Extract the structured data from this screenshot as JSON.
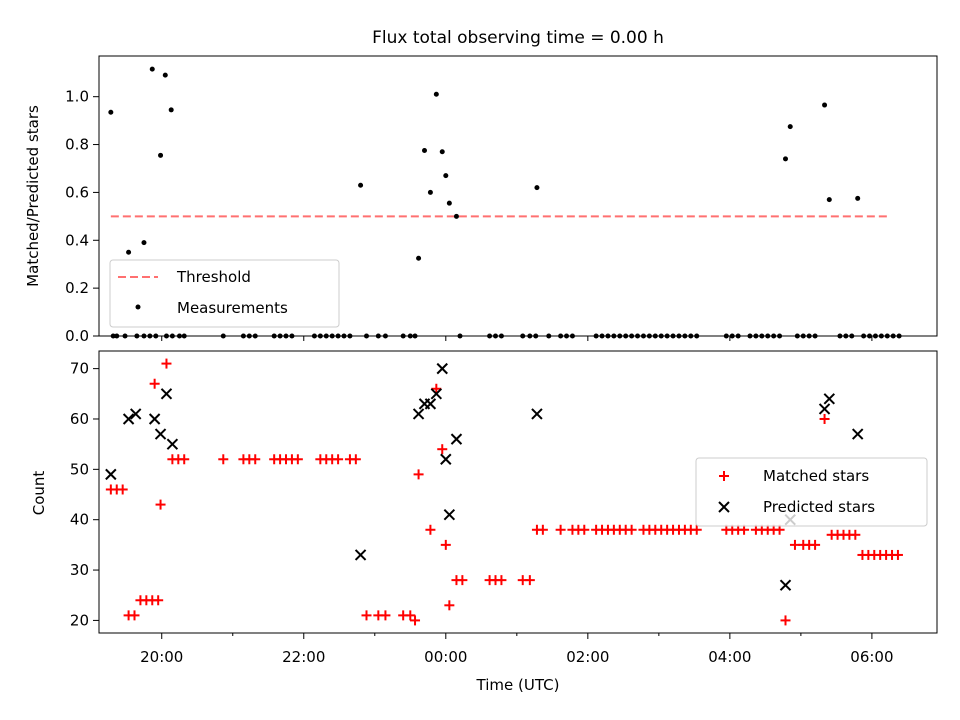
{
  "title": "Flux total observing time = 0.00 h",
  "colors": {
    "threshold": "#ff7070",
    "measurements": "#000000",
    "matched": "#ff0000",
    "predicted": "#000000"
  },
  "chart_data": [
    {
      "type": "scatter",
      "ylabel": "Matched/Predicted stars",
      "ylim": [
        0,
        1.17
      ],
      "yticks": [
        "0.0",
        "0.2",
        "0.4",
        "0.6",
        "0.8",
        "1.0"
      ],
      "xlim": [
        "19:07",
        "06:55"
      ],
      "legend": {
        "position": "lower-left",
        "entries": [
          "Threshold",
          "Measurements"
        ]
      },
      "threshold": {
        "name": "Threshold",
        "y": 0.5,
        "x": [
          "19:17",
          "06:13"
        ]
      },
      "series": [
        {
          "name": "Measurements",
          "points": [
            [
              "19:17",
              0.935
            ],
            [
              "19:32",
              0.35
            ],
            [
              "19:45",
              0.39
            ],
            [
              "19:52",
              1.115
            ],
            [
              "19:59",
              0.755
            ],
            [
              "20:03",
              1.09
            ],
            [
              "20:08",
              0.945
            ],
            [
              "22:48",
              0.63
            ],
            [
              "23:37",
              0.325
            ],
            [
              "23:42",
              0.775
            ],
            [
              "23:47",
              0.6
            ],
            [
              "23:52",
              1.01
            ],
            [
              "23:57",
              0.77
            ],
            [
              "00:00",
              0.67
            ],
            [
              "00:03",
              0.555
            ],
            [
              "00:09",
              0.5
            ],
            [
              "01:17",
              0.62
            ],
            [
              "04:47",
              0.74
            ],
            [
              "04:51",
              0.875
            ],
            [
              "05:20",
              0.965
            ],
            [
              "05:24",
              0.57
            ],
            [
              "05:48",
              0.575
            ],
            [
              "19:19",
              0
            ],
            [
              "19:22",
              0
            ],
            [
              "19:29",
              0
            ],
            [
              "19:39",
              0
            ],
            [
              "19:45",
              0
            ],
            [
              "19:50",
              0
            ],
            [
              "19:55",
              0
            ],
            [
              "20:04",
              0
            ],
            [
              "20:09",
              0
            ],
            [
              "20:15",
              0
            ],
            [
              "20:19",
              0
            ],
            [
              "20:52",
              0
            ],
            [
              "21:09",
              0
            ],
            [
              "21:14",
              0
            ],
            [
              "21:19",
              0
            ],
            [
              "21:35",
              0
            ],
            [
              "21:40",
              0
            ],
            [
              "21:45",
              0
            ],
            [
              "21:50",
              0
            ],
            [
              "22:09",
              0
            ],
            [
              "22:14",
              0
            ],
            [
              "22:19",
              0
            ],
            [
              "22:24",
              0
            ],
            [
              "22:29",
              0
            ],
            [
              "22:34",
              0
            ],
            [
              "22:39",
              0
            ],
            [
              "22:53",
              0
            ],
            [
              "23:03",
              0
            ],
            [
              "23:09",
              0
            ],
            [
              "23:24",
              0
            ],
            [
              "23:30",
              0
            ],
            [
              "23:34",
              0
            ],
            [
              "00:12",
              0
            ],
            [
              "00:37",
              0
            ],
            [
              "00:42",
              0
            ],
            [
              "00:47",
              0
            ],
            [
              "01:05",
              0
            ],
            [
              "01:11",
              0
            ],
            [
              "01:16",
              0
            ],
            [
              "01:27",
              0
            ],
            [
              "01:37",
              0
            ],
            [
              "01:42",
              0
            ],
            [
              "01:47",
              0
            ],
            [
              "02:07",
              0
            ],
            [
              "02:12",
              0
            ],
            [
              "02:17",
              0
            ],
            [
              "02:22",
              0
            ],
            [
              "02:27",
              0
            ],
            [
              "02:32",
              0
            ],
            [
              "02:37",
              0
            ],
            [
              "02:42",
              0
            ],
            [
              "02:47",
              0
            ],
            [
              "02:52",
              0
            ],
            [
              "02:57",
              0
            ],
            [
              "03:02",
              0
            ],
            [
              "03:07",
              0
            ],
            [
              "03:12",
              0
            ],
            [
              "03:17",
              0
            ],
            [
              "03:22",
              0
            ],
            [
              "03:27",
              0
            ],
            [
              "03:32",
              0
            ],
            [
              "03:57",
              0
            ],
            [
              "04:02",
              0
            ],
            [
              "04:07",
              0
            ],
            [
              "04:17",
              0
            ],
            [
              "04:22",
              0
            ],
            [
              "04:27",
              0
            ],
            [
              "04:32",
              0
            ],
            [
              "04:37",
              0
            ],
            [
              "04:42",
              0
            ],
            [
              "04:57",
              0
            ],
            [
              "05:02",
              0
            ],
            [
              "05:07",
              0
            ],
            [
              "05:12",
              0
            ],
            [
              "05:33",
              0
            ],
            [
              "05:38",
              0
            ],
            [
              "05:43",
              0
            ],
            [
              "05:53",
              0
            ],
            [
              "05:58",
              0
            ],
            [
              "06:03",
              0
            ],
            [
              "06:08",
              0
            ],
            [
              "06:13",
              0
            ],
            [
              "06:18",
              0
            ],
            [
              "06:23",
              0
            ]
          ]
        }
      ]
    },
    {
      "type": "scatter",
      "xlabel": "Time (UTC)",
      "ylabel": "Count",
      "ylim": [
        17.5,
        73.5
      ],
      "yticks": [
        "20",
        "30",
        "40",
        "50",
        "60",
        "70"
      ],
      "xlim": [
        "19:07",
        "06:55"
      ],
      "xticks": [
        {
          "t": "20:00",
          "label": "20:00"
        },
        {
          "t": "21:00",
          "label": ""
        },
        {
          "t": "22:00",
          "label": "22:00"
        },
        {
          "t": "23:00",
          "label": ""
        },
        {
          "t": "00:00",
          "label": "00:00"
        },
        {
          "t": "01:00",
          "label": ""
        },
        {
          "t": "02:00",
          "label": "02:00"
        },
        {
          "t": "03:00",
          "label": ""
        },
        {
          "t": "04:00",
          "label": "04:00"
        },
        {
          "t": "05:00",
          "label": ""
        },
        {
          "t": "06:00",
          "label": "06:00"
        }
      ],
      "legend": {
        "position": "center-right",
        "entries": [
          "Matched stars",
          "Predicted stars"
        ]
      },
      "series": [
        {
          "name": "Matched stars",
          "marker": "plus",
          "points": [
            [
              "19:17",
              46
            ],
            [
              "19:22",
              46
            ],
            [
              "19:27",
              46
            ],
            [
              "19:32",
              21
            ],
            [
              "19:37",
              21
            ],
            [
              "19:42",
              24
            ],
            [
              "19:47",
              24
            ],
            [
              "19:52",
              24
            ],
            [
              "19:57",
              24
            ],
            [
              "19:54",
              67
            ],
            [
              "19:59",
              43
            ],
            [
              "20:04",
              71
            ],
            [
              "20:09",
              52
            ],
            [
              "20:14",
              52
            ],
            [
              "20:19",
              52
            ],
            [
              "20:52",
              52
            ],
            [
              "21:09",
              52
            ],
            [
              "21:14",
              52
            ],
            [
              "21:19",
              52
            ],
            [
              "21:35",
              52
            ],
            [
              "21:40",
              52
            ],
            [
              "21:45",
              52
            ],
            [
              "21:50",
              52
            ],
            [
              "21:55",
              52
            ],
            [
              "22:14",
              52
            ],
            [
              "22:19",
              52
            ],
            [
              "22:24",
              52
            ],
            [
              "22:29",
              52
            ],
            [
              "22:39",
              52
            ],
            [
              "22:44",
              52
            ],
            [
              "22:53",
              21
            ],
            [
              "23:03",
              21
            ],
            [
              "23:09",
              21
            ],
            [
              "23:24",
              21
            ],
            [
              "23:30",
              21
            ],
            [
              "23:34",
              20
            ],
            [
              "23:37",
              49
            ],
            [
              "23:47",
              38
            ],
            [
              "23:52",
              66
            ],
            [
              "23:57",
              54
            ],
            [
              "00:00",
              35
            ],
            [
              "00:03",
              23
            ],
            [
              "00:09",
              28
            ],
            [
              "00:14",
              28
            ],
            [
              "00:37",
              28
            ],
            [
              "00:42",
              28
            ],
            [
              "00:47",
              28
            ],
            [
              "01:05",
              28
            ],
            [
              "01:11",
              28
            ],
            [
              "01:17",
              38
            ],
            [
              "01:22",
              38
            ],
            [
              "01:37",
              38
            ],
            [
              "01:47",
              38
            ],
            [
              "01:52",
              38
            ],
            [
              "01:57",
              38
            ],
            [
              "02:07",
              38
            ],
            [
              "02:12",
              38
            ],
            [
              "02:17",
              38
            ],
            [
              "02:22",
              38
            ],
            [
              "02:27",
              38
            ],
            [
              "02:32",
              38
            ],
            [
              "02:37",
              38
            ],
            [
              "02:47",
              38
            ],
            [
              "02:52",
              38
            ],
            [
              "02:57",
              38
            ],
            [
              "03:02",
              38
            ],
            [
              "03:07",
              38
            ],
            [
              "03:12",
              38
            ],
            [
              "03:17",
              38
            ],
            [
              "03:22",
              38
            ],
            [
              "03:27",
              38
            ],
            [
              "03:32",
              38
            ],
            [
              "03:57",
              38
            ],
            [
              "04:02",
              38
            ],
            [
              "04:07",
              38
            ],
            [
              "04:12",
              38
            ],
            [
              "04:22",
              38
            ],
            [
              "04:27",
              38
            ],
            [
              "04:32",
              38
            ],
            [
              "04:37",
              38
            ],
            [
              "04:42",
              38
            ],
            [
              "04:47",
              20
            ],
            [
              "04:55",
              35
            ],
            [
              "05:02",
              35
            ],
            [
              "05:07",
              35
            ],
            [
              "05:12",
              35
            ],
            [
              "05:20",
              60
            ],
            [
              "05:26",
              37
            ],
            [
              "05:31",
              37
            ],
            [
              "05:36",
              37
            ],
            [
              "05:41",
              37
            ],
            [
              "05:46",
              37
            ],
            [
              "05:52",
              33
            ],
            [
              "05:57",
              33
            ],
            [
              "06:02",
              33
            ],
            [
              "06:07",
              33
            ],
            [
              "06:12",
              33
            ],
            [
              "06:17",
              33
            ],
            [
              "06:22",
              33
            ]
          ]
        },
        {
          "name": "Predicted stars",
          "marker": "x",
          "points": [
            [
              "19:17",
              49
            ],
            [
              "19:32",
              60
            ],
            [
              "19:38",
              61
            ],
            [
              "19:54",
              60
            ],
            [
              "19:59",
              57
            ],
            [
              "20:04",
              65
            ],
            [
              "20:09",
              55
            ],
            [
              "22:48",
              33
            ],
            [
              "23:37",
              61
            ],
            [
              "23:42",
              63
            ],
            [
              "23:47",
              63
            ],
            [
              "23:52",
              65
            ],
            [
              "23:57",
              70
            ],
            [
              "00:00",
              52
            ],
            [
              "00:03",
              41
            ],
            [
              "00:09",
              56
            ],
            [
              "01:17",
              61
            ],
            [
              "04:47",
              27
            ],
            [
              "04:51",
              40
            ],
            [
              "05:20",
              62
            ],
            [
              "05:24",
              64
            ],
            [
              "05:48",
              57
            ]
          ]
        }
      ]
    }
  ]
}
